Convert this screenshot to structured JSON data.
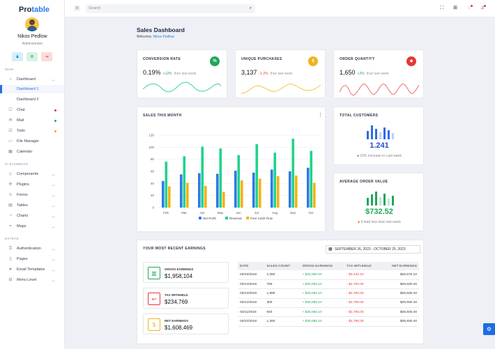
{
  "brand": {
    "part1": "Pro",
    "part2": "table"
  },
  "user": {
    "name": "Nikos Pedlow",
    "role": "Administrator"
  },
  "quick": [
    {
      "icon": "person-icon",
      "glyph": "♟"
    },
    {
      "icon": "settings-icon",
      "glyph": "⚙"
    },
    {
      "icon": "logout-icon",
      "glyph": "⇥"
    }
  ],
  "sections": {
    "main": "MAIN",
    "ui": "UI ELEMENTS",
    "extras": "EXTRAS"
  },
  "menu": {
    "dashboard": "Dashboard",
    "dashboard1": "Dashboard 1",
    "dashboard2": "Dashboard 2",
    "chat": "Chat",
    "mail": "Mail",
    "todo": "Todo",
    "file_manager": "File Manager",
    "calendar": "Calendar",
    "components": "Components",
    "plugins": "Plugins",
    "forms": "Forms",
    "tables": "Tables",
    "charts": "Charts",
    "maps": "Maps",
    "authentication": "Authentication",
    "pages": "Pages",
    "email_templates": "Email Templates",
    "menu_level": "Menu Level"
  },
  "topbar": {
    "search_placeholder": "Search"
  },
  "page": {
    "title": "Sales Dashboard",
    "welcome_prefix": "Welcome, ",
    "welcome_name": "Nikos Pedlow"
  },
  "kpis": {
    "conversion": {
      "title": "CONVERSION RATE",
      "value": "0.19%",
      "change": "+12%",
      "suffix": "than last week",
      "color": "#22a559"
    },
    "purchases": {
      "title": "UNIQUE PURCHASES",
      "value": "3,137",
      "change": "-1.2%",
      "suffix": "than last week",
      "color": "#f0b21e"
    },
    "orders": {
      "title": "ORDER QUANTITY",
      "value": "1,650",
      "change": "+2%",
      "suffix": "than last week",
      "color": "#e53935"
    }
  },
  "sales_chart_title": "SALES THIS MONTH",
  "chart_data": {
    "type": "bar",
    "categories": [
      "Feb",
      "Mar",
      "Apr",
      "May",
      "Jun",
      "Jul",
      "Aug",
      "Sep",
      "Oct"
    ],
    "ylim": [
      0,
      120
    ],
    "yticks": [
      0,
      20,
      40,
      60,
      80,
      100,
      120
    ],
    "series": [
      {
        "name": "Net Profit",
        "color": "#2e7ae6",
        "values": [
          44,
          55,
          57,
          56,
          61,
          58,
          63,
          60,
          66
        ]
      },
      {
        "name": "Revenue",
        "color": "#1fd38a",
        "values": [
          76,
          85,
          101,
          98,
          87,
          105,
          91,
          114,
          94
        ]
      },
      {
        "name": "Free Cash Flow",
        "color": "#f5b20a",
        "values": [
          35,
          41,
          36,
          26,
          45,
          48,
          52,
          53,
          41
        ]
      }
    ]
  },
  "total_customers": {
    "title": "TOTAL CUSTOMERS",
    "value": "1.241",
    "note": "23% increase in Last week"
  },
  "avg_order": {
    "title": "AVERAGE ORDER VALUE",
    "value": "$732.52",
    "note": "4 lead less than last week"
  },
  "earnings": {
    "title": "YOUR MOST RECENT EARNINGS",
    "range": "SEPTEMBER 26, 2023 - OCTOBER 25, 2023",
    "gross": {
      "label": "GROSS EARNINGS",
      "value": "$1,958,104"
    },
    "tax": {
      "label": "TAX WITHHELD",
      "value": "$234,769"
    },
    "net": {
      "label": "NET EARNINGS",
      "value": "$1,608,469"
    },
    "headers": [
      "DATE",
      "SALES COUNT",
      "GROSS EARNINGS",
      "TAX WITHHELD",
      "NET EARNINGS"
    ],
    "rows": [
      [
        "03/15/2018",
        "1,050",
        "+ $32,580.00",
        "- $3,232.10",
        "$26,670.10"
      ],
      [
        "03/14/2018",
        "780",
        "+ $30,065.10",
        "- $2,780.00",
        "$26,930.40"
      ],
      [
        "03/13/2018",
        "1,980",
        "+ $30,065.10",
        "- $2,780.00",
        "$26,930.40"
      ],
      [
        "03/12/2018",
        "300",
        "+ $30,065.10",
        "- $2,780.00",
        "$26,930.40"
      ],
      [
        "03/11/2018",
        "940",
        "+ $30,065.10",
        "- $2,780.00",
        "$26,930.40"
      ],
      [
        "03/10/2018",
        "1,260",
        "+ $30,065.10",
        "- $2,780.00",
        "$26,930.40"
      ]
    ]
  }
}
